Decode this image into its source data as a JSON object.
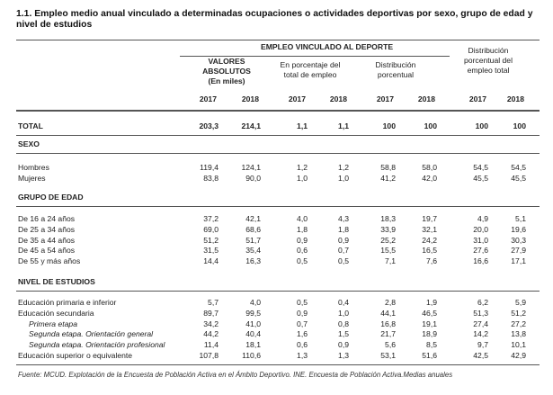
{
  "title": "1.1. Empleo medio anual vinculado a determinadas ocupaciones o actividades deportivas por sexo, grupo de edad y nivel de estudios",
  "header": {
    "group": "EMPLEO VINCULADO AL DEPORTE",
    "columns": [
      {
        "lines": [
          "VALORES",
          "ABSOLUTOS",
          "(En miles)"
        ]
      },
      {
        "lines": [
          "En porcentaje del",
          "total de empleo"
        ]
      },
      {
        "lines": [
          "Distribución",
          "porcentual"
        ]
      },
      {
        "lines": [
          "Distribución",
          "porcentual del",
          "empleo total"
        ]
      }
    ],
    "years": [
      "2017",
      "2018",
      "2017",
      "2018",
      "2017",
      "2018",
      "2017",
      "2018"
    ]
  },
  "total": {
    "label": "TOTAL",
    "values": [
      "203,3",
      "214,1",
      "1,1",
      "1,1",
      "100",
      "100",
      "100",
      "100"
    ]
  },
  "sections": [
    {
      "title": "SEXO",
      "rows": [
        {
          "label": "Hombres",
          "values": [
            "119,4",
            "124,1",
            "1,2",
            "1,2",
            "58,8",
            "58,0",
            "54,5",
            "54,5"
          ]
        },
        {
          "label": "Mujeres",
          "values": [
            "83,8",
            "90,0",
            "1,0",
            "1,0",
            "41,2",
            "42,0",
            "45,5",
            "45,5"
          ]
        }
      ]
    },
    {
      "title": "GRUPO DE EDAD",
      "rows": [
        {
          "label": "De 16 a 24 años",
          "values": [
            "37,2",
            "42,1",
            "4,0",
            "4,3",
            "18,3",
            "19,7",
            "4,9",
            "5,1"
          ]
        },
        {
          "label": "De 25 a 34 años",
          "values": [
            "69,0",
            "68,6",
            "1,8",
            "1,8",
            "33,9",
            "32,1",
            "20,0",
            "19,6"
          ]
        },
        {
          "label": "De 35 a 44 años",
          "values": [
            "51,2",
            "51,7",
            "0,9",
            "0,9",
            "25,2",
            "24,2",
            "31,0",
            "30,3"
          ]
        },
        {
          "label": "De 45 a 54 años",
          "values": [
            "31,5",
            "35,4",
            "0,6",
            "0,7",
            "15,5",
            "16,5",
            "27,6",
            "27,9"
          ]
        },
        {
          "label": "De 55 y más años",
          "values": [
            "14,4",
            "16,3",
            "0,5",
            "0,5",
            "7,1",
            "7,6",
            "16,6",
            "17,1"
          ]
        }
      ]
    },
    {
      "title": "NIVEL DE ESTUDIOS",
      "rows": [
        {
          "label": "Educación primaria e inferior",
          "values": [
            "5,7",
            "4,0",
            "0,5",
            "0,4",
            "2,8",
            "1,9",
            "6,2",
            "5,9"
          ]
        },
        {
          "label": "Educación secundaria",
          "values": [
            "89,7",
            "99,5",
            "0,9",
            "1,0",
            "44,1",
            "46,5",
            "51,3",
            "51,2"
          ]
        },
        {
          "label": "Primera etapa",
          "values": [
            "34,2",
            "41,0",
            "0,7",
            "0,8",
            "16,8",
            "19,1",
            "27,4",
            "27,2"
          ]
        },
        {
          "label": "Segunda etapa. Orientación general",
          "values": [
            "44,2",
            "40,4",
            "1,6",
            "1,5",
            "21,7",
            "18,9",
            "14,2",
            "13,8"
          ]
        },
        {
          "label": "Segunda etapa. Orientación profesional",
          "values": [
            "11,4",
            "18,1",
            "0,6",
            "0,9",
            "5,6",
            "8,5",
            "9,7",
            "10,1"
          ]
        },
        {
          "label": "Educación superior o equivalente",
          "values": [
            "107,8",
            "110,6",
            "1,3",
            "1,3",
            "53,1",
            "51,6",
            "42,5",
            "42,9"
          ]
        }
      ]
    }
  ],
  "footnote": "Fuente: MCUD. Explotación de la Encuesta de Población Activa en el Ámbito Deportivo. INE. Encuesta de Población Activa.Medias anuales"
}
